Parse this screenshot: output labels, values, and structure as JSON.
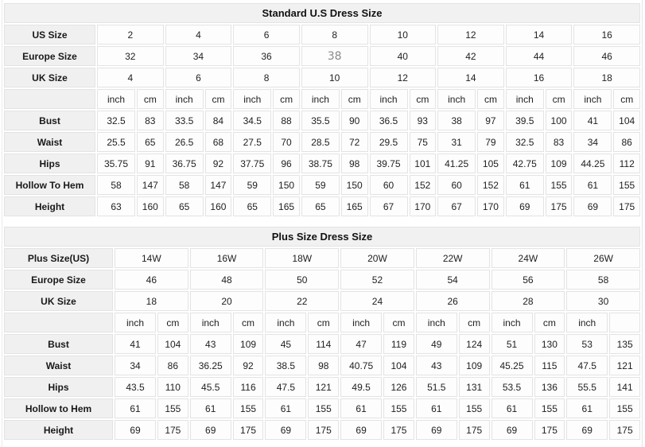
{
  "tables": [
    {
      "id": "standard",
      "title": "Standard U.S Dress Size",
      "size_rows": [
        {
          "label": "US Size",
          "values": [
            "2",
            "4",
            "6",
            "8",
            "10",
            "12",
            "14",
            "16"
          ]
        },
        {
          "label": "Europe Size",
          "values": [
            "32",
            "34",
            "36",
            "38",
            "40",
            "42",
            "44",
            "46"
          ]
        },
        {
          "label": "UK Size",
          "values": [
            "4",
            "6",
            "8",
            "10",
            "12",
            "14",
            "16",
            "18"
          ]
        }
      ],
      "muted_cell": {
        "row_label": "Europe Size",
        "value_index": 3
      },
      "unit_row": [
        "inch",
        "cm",
        "inch",
        "cm",
        "inch",
        "cm",
        "inch",
        "cm",
        "inch",
        "cm",
        "inch",
        "cm",
        "inch",
        "cm",
        "inch",
        "cm"
      ],
      "measurement_rows": [
        {
          "label": "Bust",
          "values": [
            "32.5",
            "83",
            "33.5",
            "84",
            "34.5",
            "88",
            "35.5",
            "90",
            "36.5",
            "93",
            "38",
            "97",
            "39.5",
            "100",
            "41",
            "104"
          ]
        },
        {
          "label": "Waist",
          "values": [
            "25.5",
            "65",
            "26.5",
            "68",
            "27.5",
            "70",
            "28.5",
            "72",
            "29.5",
            "75",
            "31",
            "79",
            "32.5",
            "83",
            "34",
            "86"
          ]
        },
        {
          "label": "Hips",
          "values": [
            "35.75",
            "91",
            "36.75",
            "92",
            "37.75",
            "96",
            "38.75",
            "98",
            "39.75",
            "101",
            "41.25",
            "105",
            "42.75",
            "109",
            "44.25",
            "112"
          ]
        },
        {
          "label": "Hollow To Hem",
          "values": [
            "58",
            "147",
            "58",
            "147",
            "59",
            "150",
            "59",
            "150",
            "60",
            "152",
            "60",
            "152",
            "61",
            "155",
            "61",
            "155"
          ]
        },
        {
          "label": "Height",
          "values": [
            "63",
            "160",
            "65",
            "160",
            "65",
            "165",
            "65",
            "165",
            "67",
            "170",
            "67",
            "170",
            "69",
            "175",
            "69",
            "175"
          ]
        }
      ]
    },
    {
      "id": "plus",
      "title": "Plus Size Dress Size",
      "size_rows": [
        {
          "label": "Plus Size(US)",
          "values": [
            "14W",
            "16W",
            "18W",
            "20W",
            "22W",
            "24W",
            "26W"
          ]
        },
        {
          "label": "Europe Size",
          "values": [
            "46",
            "48",
            "50",
            "52",
            "54",
            "56",
            "58"
          ]
        },
        {
          "label": "UK Size",
          "values": [
            "18",
            "20",
            "22",
            "24",
            "26",
            "28",
            "30"
          ]
        }
      ],
      "muted_cell": null,
      "unit_row": [
        "inch",
        "cm",
        "inch",
        "cm",
        "inch",
        "cm",
        "inch",
        "cm",
        "inch",
        "cm",
        "inch",
        "cm",
        "inch",
        ""
      ],
      "measurement_rows": [
        {
          "label": "Bust",
          "values": [
            "41",
            "104",
            "43",
            "109",
            "45",
            "114",
            "47",
            "119",
            "49",
            "124",
            "51",
            "130",
            "53",
            "135"
          ]
        },
        {
          "label": "Waist",
          "values": [
            "34",
            "86",
            "36.25",
            "92",
            "38.5",
            "98",
            "40.75",
            "104",
            "43",
            "109",
            "45.25",
            "115",
            "47.5",
            "121"
          ]
        },
        {
          "label": "Hips",
          "values": [
            "43.5",
            "110",
            "45.5",
            "116",
            "47.5",
            "121",
            "49.5",
            "126",
            "51.5",
            "131",
            "53.5",
            "136",
            "55.5",
            "141"
          ]
        },
        {
          "label": "Hollow to Hem",
          "values": [
            "61",
            "155",
            "61",
            "155",
            "61",
            "155",
            "61",
            "155",
            "61",
            "155",
            "61",
            "155",
            "61",
            "155"
          ]
        },
        {
          "label": "Height",
          "values": [
            "69",
            "175",
            "69",
            "175",
            "69",
            "175",
            "69",
            "175",
            "69",
            "175",
            "69",
            "175",
            "69",
            "175"
          ]
        }
      ]
    }
  ],
  "colors": {
    "header_bg": "#f0f0f0",
    "cell_bg": "#fdfdfd",
    "border": "#e3e3e3",
    "text": "#1f1f1f",
    "muted_text": "#8a8a8a"
  }
}
